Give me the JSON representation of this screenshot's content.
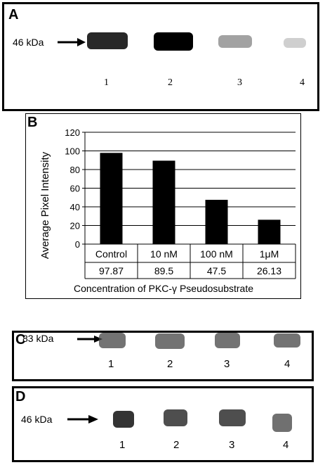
{
  "panel_a": {
    "label": "A",
    "marker": "46 kDa",
    "lanes": [
      "1",
      "2",
      "3",
      "4"
    ],
    "band_intensity": [
      0.9,
      1.0,
      0.45,
      0.25
    ]
  },
  "panel_b": {
    "label": "B"
  },
  "chart_data": {
    "type": "bar",
    "categories": [
      "Control",
      "10 nM",
      "100 nM",
      "1μM"
    ],
    "values": [
      97.87,
      89.5,
      47.5,
      26.13
    ],
    "value_labels": [
      "97.87",
      "89.5",
      "47.5",
      "26.13"
    ],
    "ylabel": "Average Pixel Intensity",
    "xlabel": "Concentration of PKC-γ Pseudosubstrate",
    "ylim": [
      0,
      120
    ],
    "yticks": [
      0,
      20,
      40,
      60,
      80,
      100,
      120
    ],
    "grid": true,
    "bar_color": "#000000"
  },
  "panel_c": {
    "label": "C",
    "marker": "83 kDa",
    "lanes": [
      "1",
      "2",
      "3",
      "4"
    ],
    "band_intensity": [
      0.6,
      0.6,
      0.6,
      0.6
    ]
  },
  "panel_d": {
    "label": "D",
    "marker": "46 kDa",
    "lanes": [
      "1",
      "2",
      "3",
      "4"
    ],
    "band_intensity": [
      0.85,
      0.8,
      0.8,
      0.7
    ]
  }
}
